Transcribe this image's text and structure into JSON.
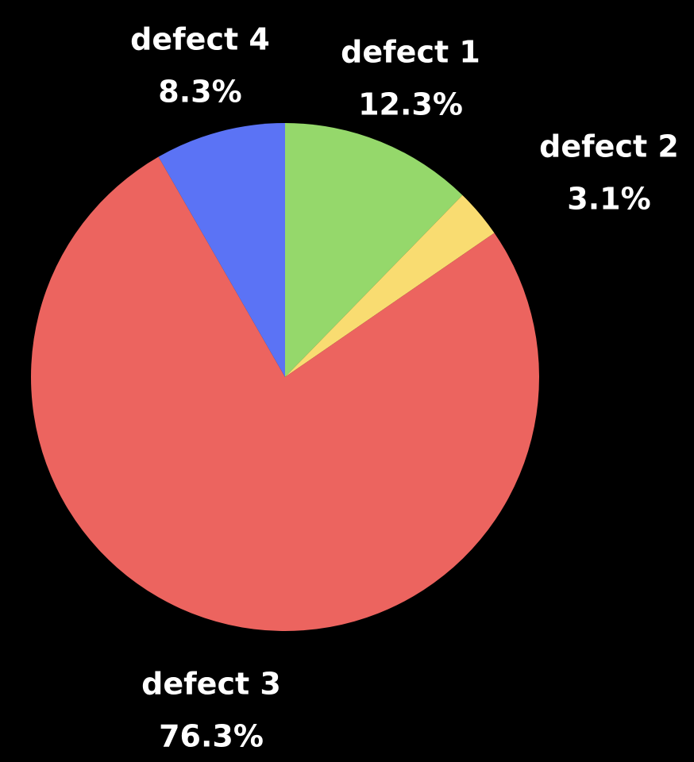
{
  "chart_data": {
    "type": "pie",
    "title": "",
    "background": "#000000",
    "start": "top",
    "direction": "clockwise",
    "slices": [
      {
        "label": "defect 1",
        "value": 12.3,
        "display": "12.3%",
        "color": "#95d86b"
      },
      {
        "label": "defect 2",
        "value": 3.1,
        "display": "3.1%",
        "color": "#f9dc71"
      },
      {
        "label": "defect 3",
        "value": 76.3,
        "display": "76.3%",
        "color": "#ec645f"
      },
      {
        "label": "defect 4",
        "value": 8.3,
        "display": "8.3%",
        "color": "#5b73f5"
      }
    ]
  }
}
